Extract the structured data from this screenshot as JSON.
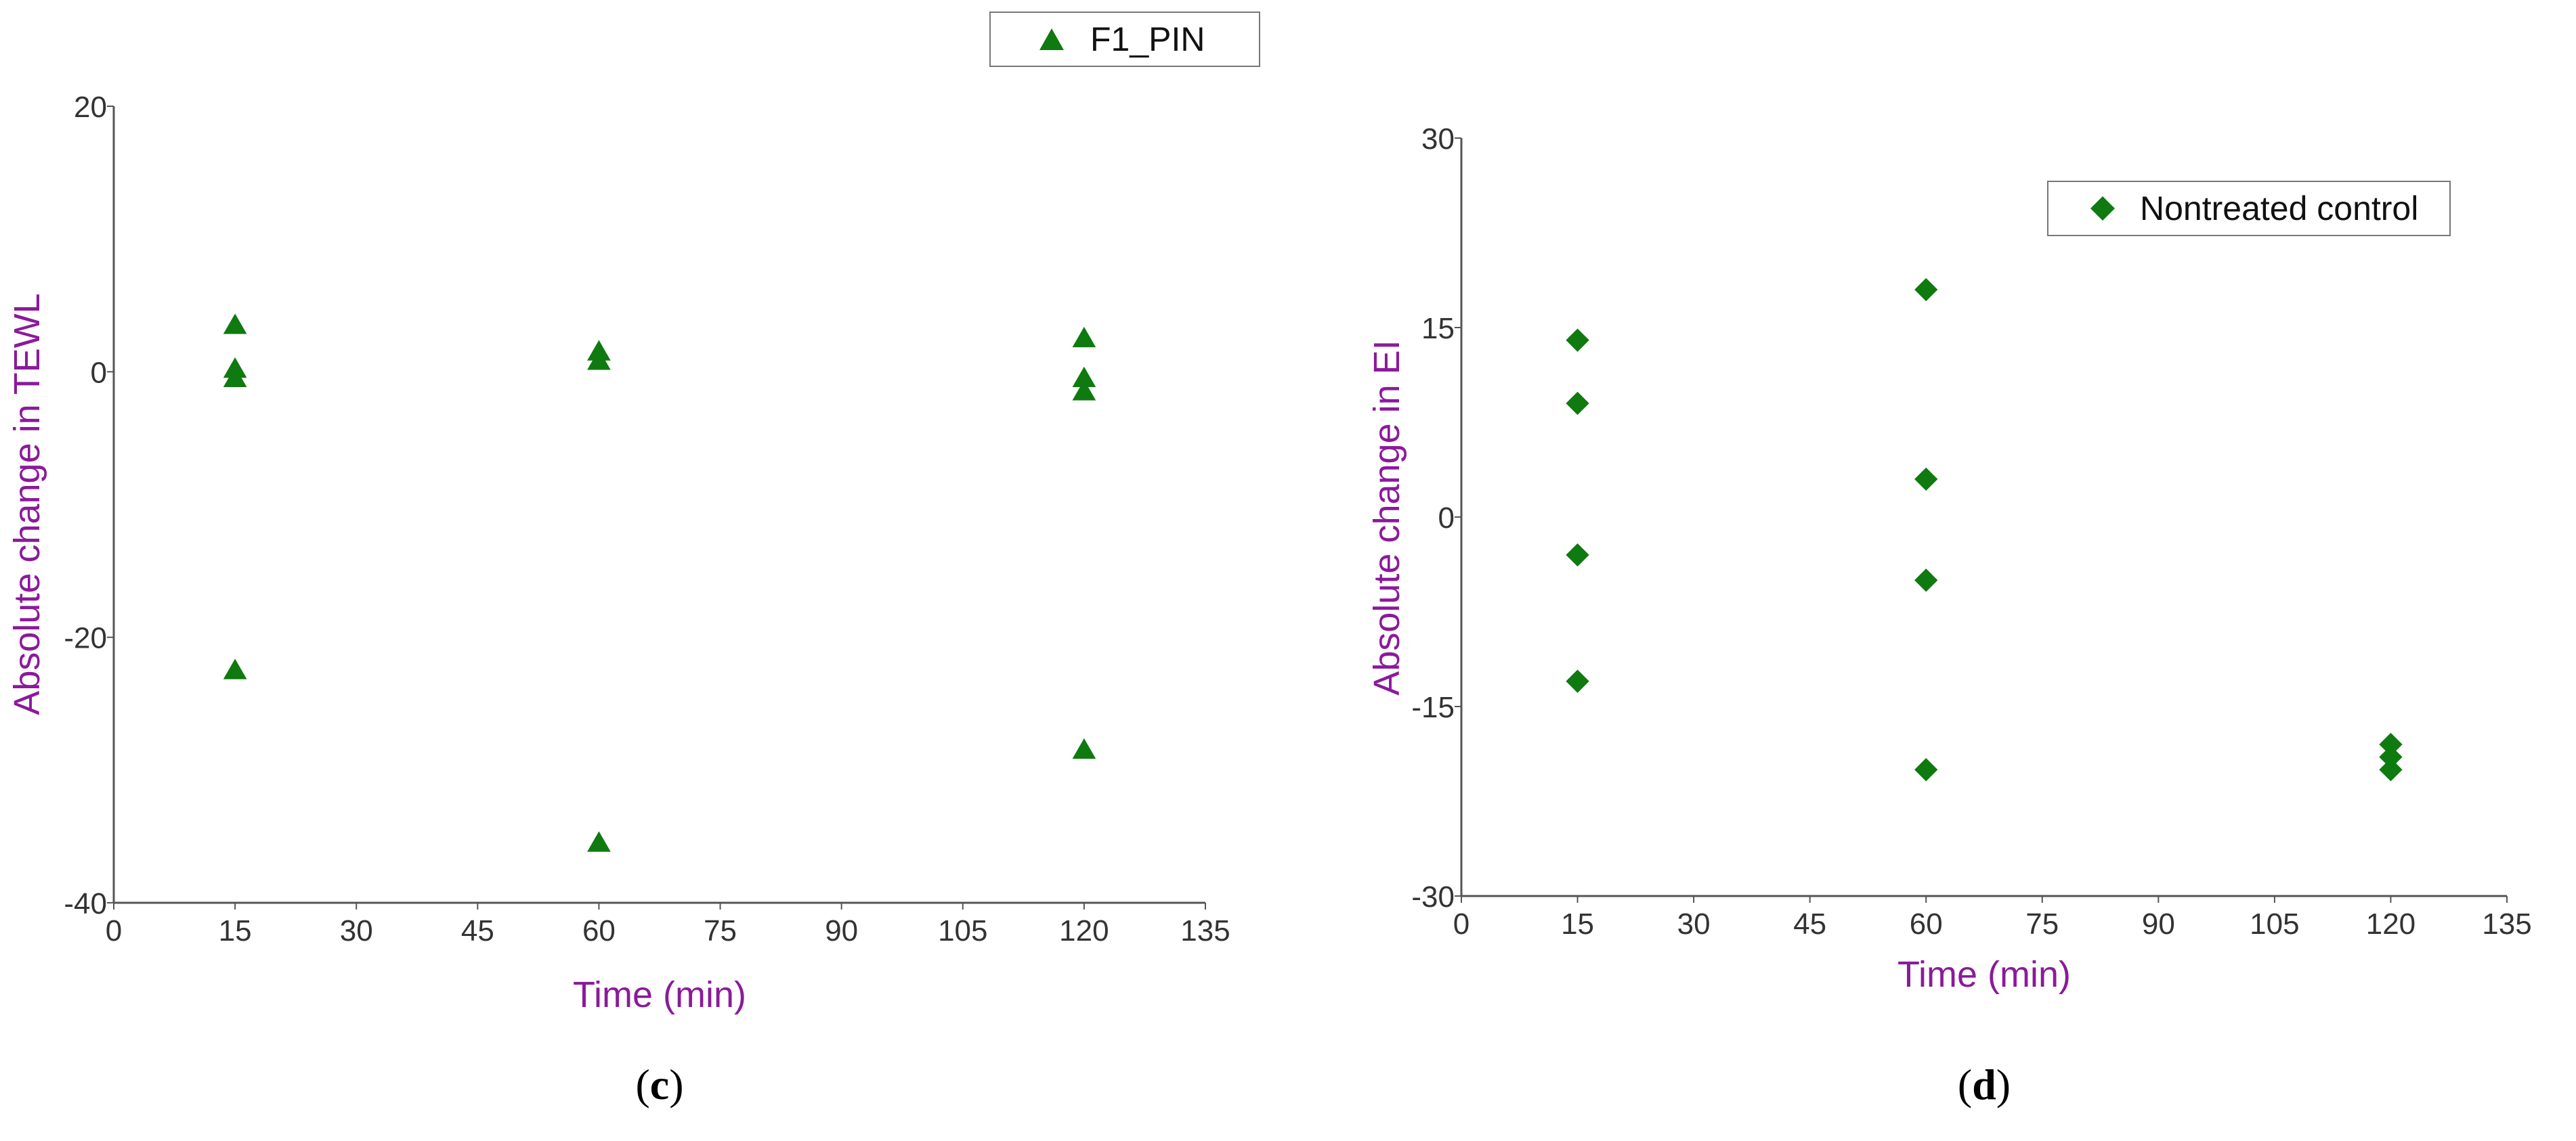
{
  "colors": {
    "marker": "#0f7a0f",
    "axis_label": "#8b1a9b",
    "axis": "#555555"
  },
  "chart_data": [
    {
      "type": "scatter",
      "panel_label": {
        "open": "(",
        "letter": "c",
        "close": ")"
      },
      "title": "",
      "xlabel": "Time (min)",
      "ylabel": "Absolute change in TEWL",
      "xlim": [
        0,
        135
      ],
      "ylim": [
        -40,
        20
      ],
      "xticks": [
        "0",
        "15",
        "30",
        "45",
        "60",
        "75",
        "90",
        "105",
        "120",
        "135"
      ],
      "yticks": [
        "-40",
        "-20",
        "0",
        "20"
      ],
      "grid": false,
      "legend_position": "top-right",
      "series": [
        {
          "name": "F1_PIN",
          "marker": "triangle",
          "points": [
            {
              "x": 15,
              "y": 3.5
            },
            {
              "x": 15,
              "y": 0.2
            },
            {
              "x": 15,
              "y": -0.5
            },
            {
              "x": 15,
              "y": -22.5
            },
            {
              "x": 60,
              "y": 1.5
            },
            {
              "x": 60,
              "y": 0.8
            },
            {
              "x": 60,
              "y": -35.5
            },
            {
              "x": 120,
              "y": 2.5
            },
            {
              "x": 120,
              "y": -0.5
            },
            {
              "x": 120,
              "y": -1.5
            },
            {
              "x": 120,
              "y": -28.5
            }
          ]
        }
      ]
    },
    {
      "type": "scatter",
      "panel_label": {
        "open": "(",
        "letter": "d",
        "close": ")"
      },
      "title": "",
      "xlabel": "Time (min)",
      "ylabel": "Absolute change in EI",
      "xlim": [
        0,
        135
      ],
      "ylim": [
        -30,
        30
      ],
      "xticks": [
        "0",
        "15",
        "30",
        "45",
        "60",
        "75",
        "90",
        "105",
        "120",
        "135"
      ],
      "yticks": [
        "-30",
        "-15",
        "0",
        "15",
        "30"
      ],
      "grid": false,
      "legend_position": "top-right",
      "series": [
        {
          "name": "Nontreated control",
          "marker": "diamond",
          "points": [
            {
              "x": 15,
              "y": 14
            },
            {
              "x": 15,
              "y": 9
            },
            {
              "x": 15,
              "y": -3
            },
            {
              "x": 15,
              "y": -13
            },
            {
              "x": 60,
              "y": 18
            },
            {
              "x": 60,
              "y": 3
            },
            {
              "x": 60,
              "y": -5
            },
            {
              "x": 60,
              "y": -20
            },
            {
              "x": 120,
              "y": -18
            },
            {
              "x": 120,
              "y": -19
            },
            {
              "x": 120,
              "y": -20
            }
          ]
        }
      ]
    }
  ]
}
